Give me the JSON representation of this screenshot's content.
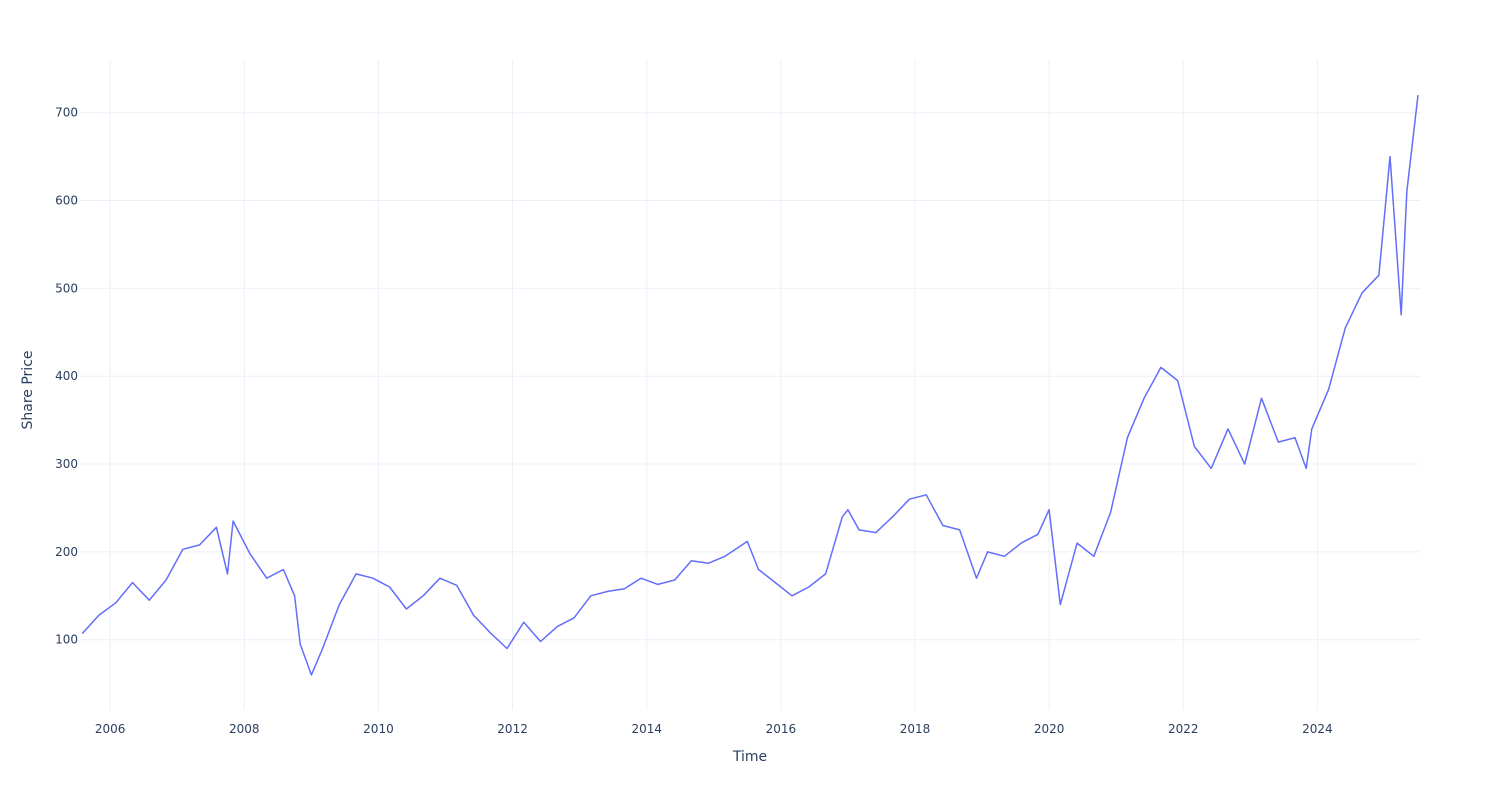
{
  "chart_data": {
    "type": "line",
    "title": "",
    "xlabel": "Time",
    "ylabel": "Share Price",
    "xlim": [
      2005.55,
      2025.53
    ],
    "ylim": [
      20,
      760
    ],
    "x_ticks": [
      "2006",
      "2008",
      "2010",
      "2012",
      "2014",
      "2016",
      "2018",
      "2020",
      "2022",
      "2024"
    ],
    "y_ticks": [
      "100",
      "200",
      "300",
      "400",
      "500",
      "600",
      "700"
    ],
    "grid": true,
    "legend": "none",
    "colors": {
      "line": "#636efa",
      "grid": "#ebf0f8",
      "text": "#2a3f5f"
    },
    "series": [
      {
        "x": [
          "2005-08",
          "2005-11",
          "2006-02",
          "2006-05",
          "2006-08",
          "2006-11",
          "2007-02",
          "2007-05",
          "2007-08",
          "2007-10",
          "2007-11",
          "2008-02",
          "2008-05",
          "2008-08",
          "2008-10",
          "2008-11",
          "2009-01",
          "2009-03",
          "2009-06",
          "2009-09",
          "2009-12",
          "2010-03",
          "2010-06",
          "2010-09",
          "2010-12",
          "2011-03",
          "2011-06",
          "2011-09",
          "2011-12",
          "2012-03",
          "2012-06",
          "2012-09",
          "2012-12",
          "2013-03",
          "2013-06",
          "2013-09",
          "2013-12",
          "2014-03",
          "2014-06",
          "2014-09",
          "2014-12",
          "2015-03",
          "2015-07",
          "2015-09",
          "2015-12",
          "2016-03",
          "2016-06",
          "2016-09",
          "2016-12",
          "2017-01",
          "2017-03",
          "2017-06",
          "2017-09",
          "2017-12",
          "2018-03",
          "2018-06",
          "2018-09",
          "2018-12",
          "2019-02",
          "2019-05",
          "2019-08",
          "2019-11",
          "2020-01",
          "2020-03",
          "2020-06",
          "2020-09",
          "2020-12",
          "2021-03",
          "2021-06",
          "2021-09",
          "2021-12",
          "2022-03",
          "2022-06",
          "2022-09",
          "2022-12",
          "2023-03",
          "2023-06",
          "2023-09",
          "2023-11",
          "2023-12",
          "2024-03",
          "2024-06",
          "2024-09",
          "2024-12",
          "2025-02",
          "2025-04",
          "2025-05",
          "2025-07"
        ],
        "y": [
          107,
          128,
          142,
          165,
          145,
          168,
          203,
          208,
          228,
          175,
          235,
          198,
          170,
          180,
          150,
          95,
          60,
          90,
          140,
          175,
          170,
          160,
          135,
          150,
          170,
          162,
          128,
          108,
          90,
          120,
          98,
          115,
          125,
          150,
          155,
          158,
          170,
          163,
          168,
          190,
          187,
          195,
          212,
          180,
          165,
          150,
          160,
          175,
          240,
          248,
          225,
          222,
          240,
          260,
          265,
          230,
          225,
          170,
          200,
          195,
          210,
          220,
          248,
          140,
          210,
          195,
          245,
          330,
          375,
          410,
          395,
          320,
          295,
          340,
          300,
          375,
          325,
          330,
          295,
          340,
          385,
          455,
          495,
          515,
          650,
          470,
          610,
          720
        ]
      }
    ]
  }
}
